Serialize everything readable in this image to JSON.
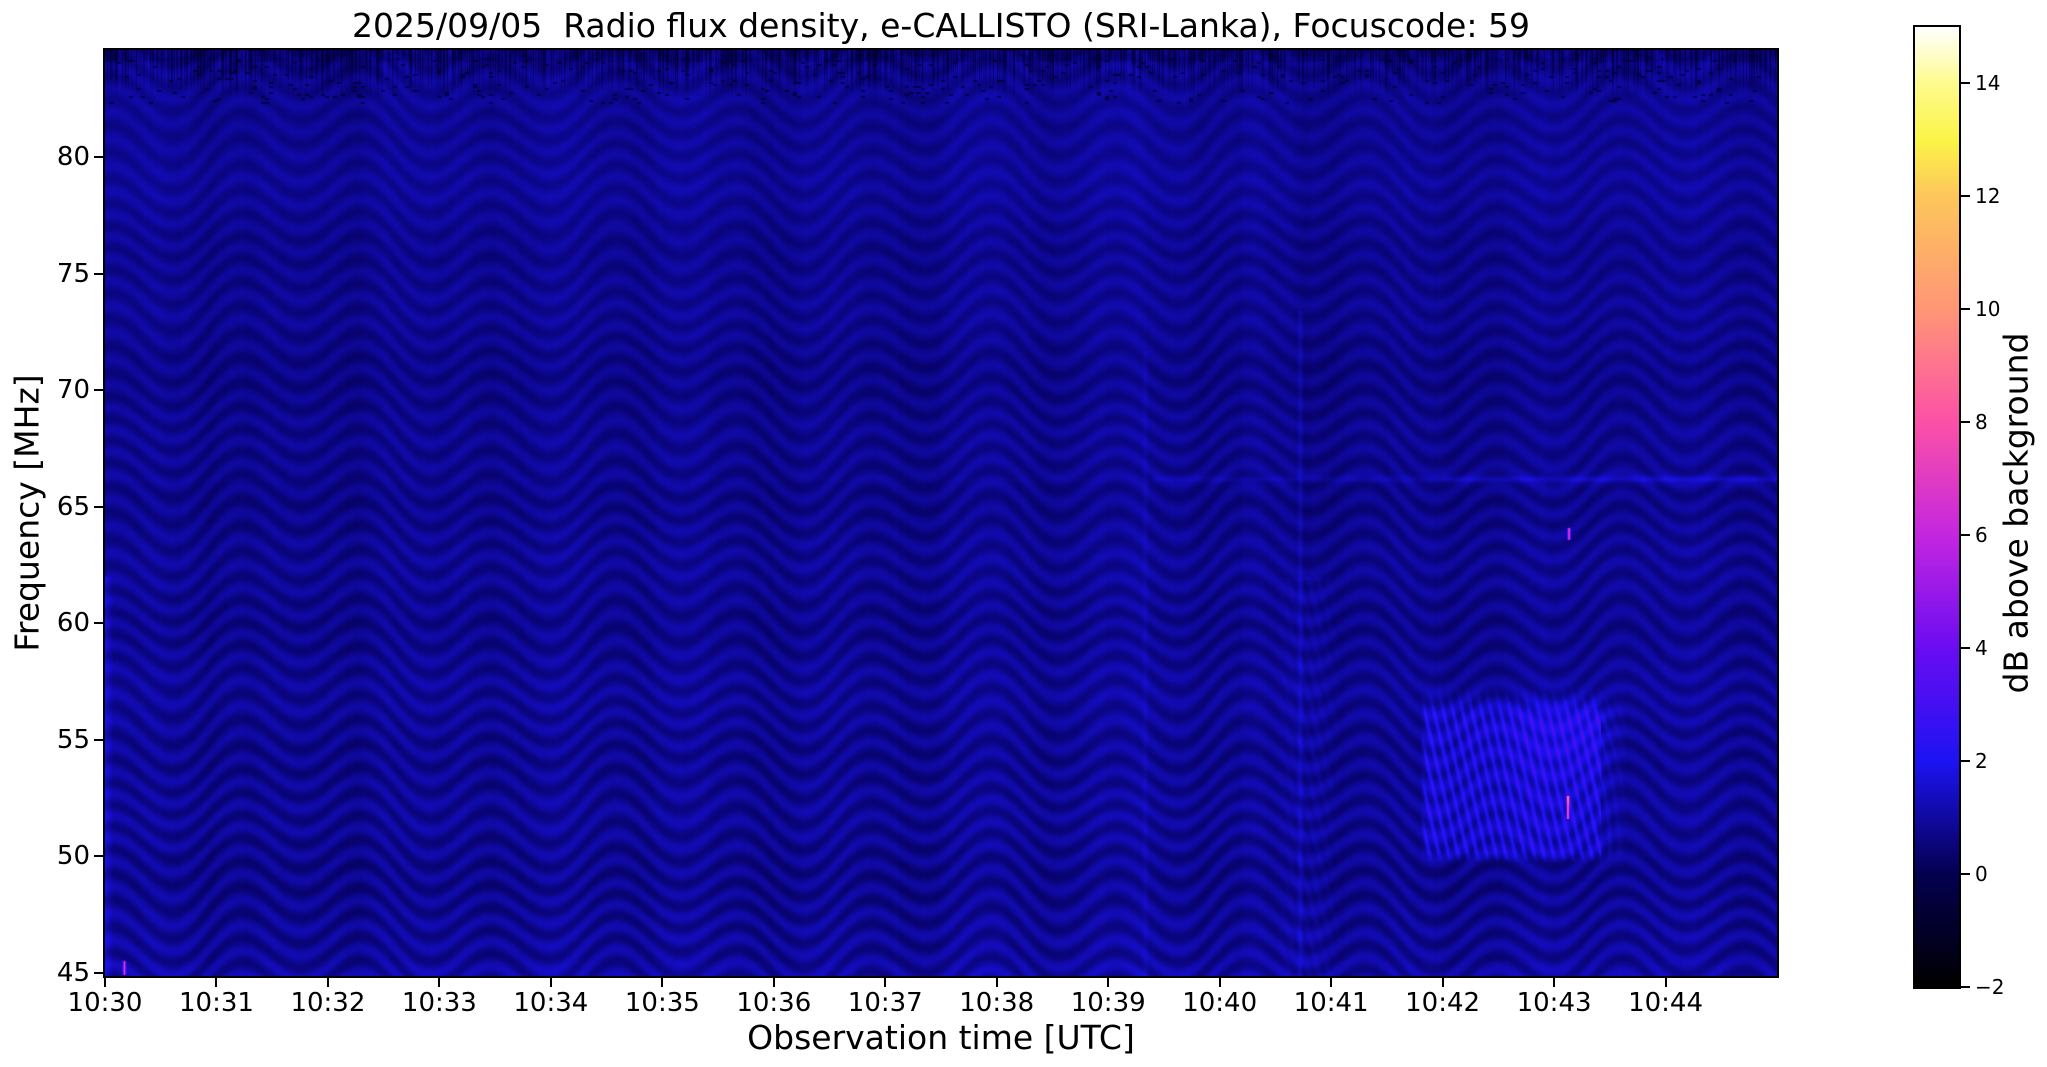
{
  "chart_data": {
    "type": "heatmap",
    "subtype": "radio-spectrogram",
    "title": "2025/09/05  Radio flux density, e-CALLISTO (SRI-Lanka), Focuscode: 59",
    "xlabel": "Observation time [UTC]",
    "ylabel": "Frequency [MHz]",
    "colorbar_label": "dB above background",
    "x_tick_labels": [
      "10:30",
      "10:31",
      "10:32",
      "10:33",
      "10:34",
      "10:35",
      "10:36",
      "10:37",
      "10:38",
      "10:39",
      "10:40",
      "10:41",
      "10:42",
      "10:43",
      "10:44"
    ],
    "x_tick_minutes": [
      0,
      1,
      2,
      3,
      4,
      5,
      6,
      7,
      8,
      9,
      10,
      11,
      12,
      13,
      14
    ],
    "x_range_minutes": [
      0,
      15
    ],
    "x_start_time": "10:30",
    "y_ticks_mhz": [
      45,
      50,
      55,
      60,
      65,
      70,
      75,
      80
    ],
    "y_range_mhz": [
      44.85,
      84.6
    ],
    "colorbar_tick_values": [
      -2,
      0,
      2,
      4,
      6,
      8,
      10,
      12,
      14
    ],
    "colorbar_tick_labels": [
      "−2",
      "0",
      "2",
      "4",
      "6",
      "8",
      "10",
      "12",
      "14"
    ],
    "colorbar_range_db": [
      -2,
      15
    ],
    "colormap_stops": [
      {
        "db": -2,
        "color": "#000000"
      },
      {
        "db": 0,
        "color": "#04004f"
      },
      {
        "db": 2,
        "color": "#1c13f2"
      },
      {
        "db": 4,
        "color": "#6a0cf2"
      },
      {
        "db": 6,
        "color": "#c426df"
      },
      {
        "db": 8,
        "color": "#fc51a7"
      },
      {
        "db": 10,
        "color": "#ff9676"
      },
      {
        "db": 12,
        "color": "#fdc65b"
      },
      {
        "db": 13,
        "color": "#fbf447"
      },
      {
        "db": 14,
        "color": "#fdfb8e"
      },
      {
        "db": 15,
        "color": "#ffffff"
      }
    ],
    "background": {
      "mean_db": 0.8,
      "texture": "wavy interference fringes over dark blue",
      "noisy_top_band_mhz": [
        82.6,
        84.6
      ]
    },
    "features": {
      "fringed_burst": {
        "t0_min": 11.8,
        "t1_min": 13.42,
        "lobe_end_min": 13.66,
        "f_low_mhz": 50.0,
        "f_high_mhz": 56.3,
        "peak_db": 2.6,
        "stripe_spacing_px": 9.5
      },
      "pink_transients": [
        {
          "t_min": 13.12,
          "f0_mhz": 51.6,
          "f1_mhz": 52.6,
          "db": 7.5
        },
        {
          "t_min": 13.13,
          "f0_mhz": 63.6,
          "f1_mhz": 64.1,
          "db": 6.5
        },
        {
          "t_min": 0.17,
          "f0_mhz": 44.9,
          "f1_mhz": 45.5,
          "db": 6.0
        }
      ],
      "vertical_bands": [
        {
          "t0_min": 10.5,
          "t1_min": 11.1,
          "f_below_mhz": 62,
          "db": 0.22
        },
        {
          "t_min": 10.72,
          "db": 0.45
        },
        {
          "t_min": 9.33,
          "db": 0.28
        }
      ],
      "horizontal_line": {
        "f_mhz": 66.2,
        "t_strong_min": 12.0,
        "t_mid_min": 9.4,
        "db": 0.7
      },
      "left_edge_bright": {
        "t0_min": 0.0,
        "t1_min": 0.07,
        "f_below_mhz": 62,
        "db": 0.9
      }
    }
  }
}
